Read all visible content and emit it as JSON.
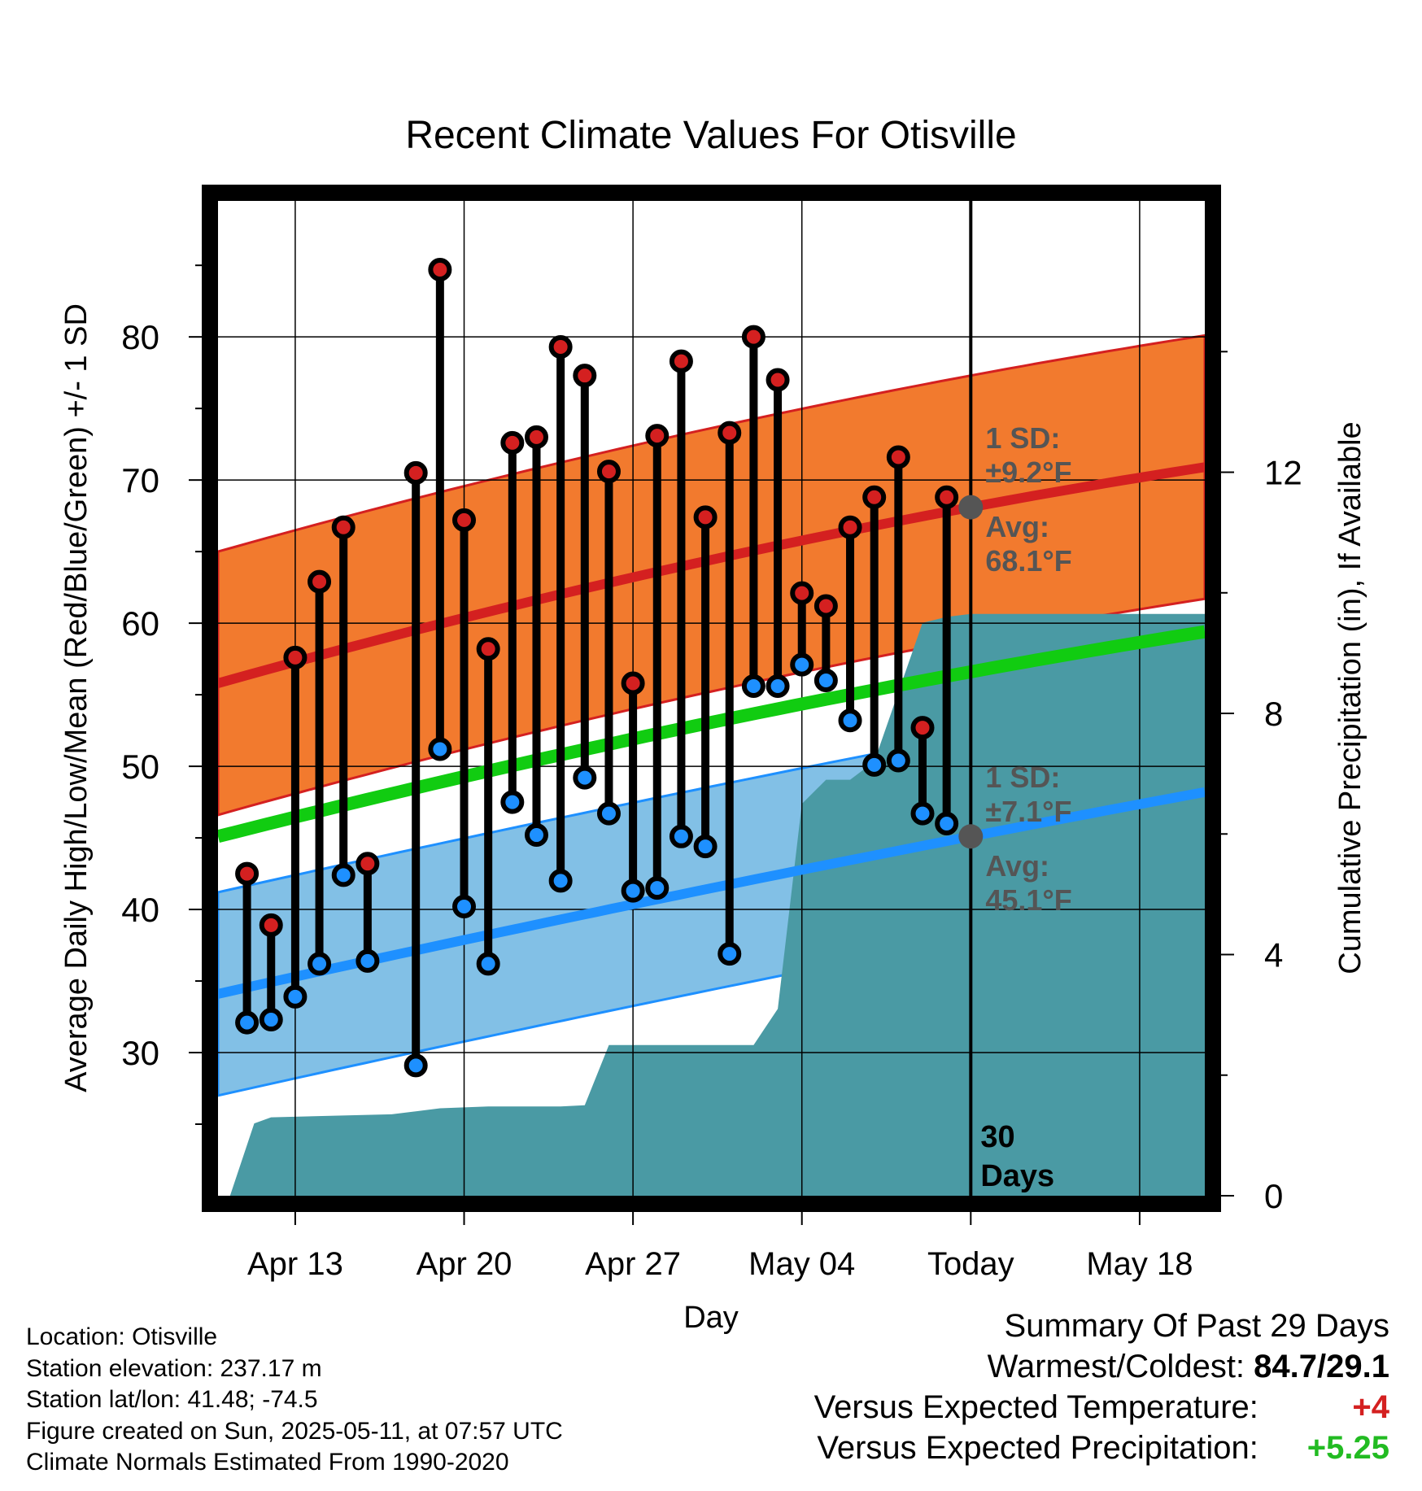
{
  "chart_data": {
    "type": "line",
    "title": "Recent Climate Values For Otisville",
    "xlabel": "Day",
    "ylabel": "Average Daily High/Low/Mean (Red/Blue/Green) +/- 1 SD",
    "y2label": "Cumulative Precipitation (in), If Available",
    "ylim": [
      20,
      89.5
    ],
    "y2lim": [
      0,
      16.5
    ],
    "x_tick_labels": [
      "Apr 13",
      "Apr 20",
      "Apr 27",
      "May 04",
      "Today",
      "May 18"
    ],
    "x_tick_days": [
      13,
      20,
      27,
      34,
      41,
      48
    ],
    "x_range_days": [
      9.8,
      50.7
    ],
    "y_ticks": [
      30,
      40,
      50,
      60,
      70,
      80
    ],
    "y2_ticks": [
      0,
      4,
      8,
      12
    ],
    "today_marker": {
      "day": 41,
      "label": "30 Days"
    },
    "normals": {
      "high_avg": {
        "days": [
          9.8,
          41,
          50.7
        ],
        "values": [
          55.8,
          68.1,
          70.9
        ]
      },
      "low_avg": {
        "days": [
          9.8,
          41,
          50.7
        ],
        "values": [
          34.1,
          45.1,
          48.2
        ]
      },
      "mean_avg": {
        "days": [
          9.8,
          41,
          50.7
        ],
        "values": [
          45.1,
          56.6,
          59.4
        ]
      },
      "high_sd": 9.2,
      "low_sd": 7.1
    },
    "annotations": {
      "high_sd_label": "1 SD:",
      "high_sd_value": "±9.2°F",
      "high_avg_label": "Avg:",
      "high_avg_value": "68.1°F",
      "low_sd_label": "1 SD:",
      "low_sd_value": "±7.1°F",
      "low_avg_label": "Avg:",
      "low_avg_value": "45.1°F"
    },
    "series": [
      {
        "name": "High",
        "color": "#d42020",
        "days": [
          11,
          12,
          13,
          14,
          15,
          16,
          18,
          19,
          20,
          21,
          22,
          23,
          24,
          25,
          26,
          27,
          28,
          29,
          30,
          31,
          32,
          33,
          34,
          35,
          36,
          37,
          38,
          39,
          40
        ],
        "values": [
          42.5,
          38.9,
          57.6,
          62.9,
          66.7,
          43.2,
          70.5,
          84.7,
          67.2,
          58.2,
          72.6,
          73.0,
          79.3,
          77.3,
          70.6,
          55.8,
          73.1,
          78.3,
          67.4,
          73.3,
          80.0,
          77.0,
          62.1,
          61.2,
          66.7,
          68.8,
          71.6,
          52.7,
          68.8
        ]
      },
      {
        "name": "Low",
        "color": "#1e90ff",
        "days": [
          11,
          12,
          13,
          14,
          15,
          16,
          18,
          19,
          20,
          21,
          22,
          23,
          24,
          25,
          26,
          27,
          28,
          29,
          30,
          31,
          32,
          33,
          34,
          35,
          36,
          37,
          38,
          39,
          40
        ],
        "values": [
          32.1,
          32.3,
          33.9,
          36.2,
          42.4,
          36.4,
          29.1,
          51.2,
          40.2,
          36.2,
          47.5,
          45.2,
          42.0,
          49.2,
          46.7,
          41.3,
          41.5,
          45.1,
          44.4,
          36.9,
          55.6,
          55.6,
          57.1,
          56.0,
          53.2,
          50.1,
          50.4,
          46.7,
          46.0
        ]
      },
      {
        "name": "Cumulative Precipitation",
        "color": "#4a9aa4",
        "days": [
          10.3,
          11.3,
          12,
          17,
          18,
          19,
          21,
          22,
          24,
          25,
          26,
          27,
          28,
          29,
          30,
          31,
          32,
          33,
          34,
          35,
          36,
          37,
          38,
          39,
          40,
          41,
          50.7
        ],
        "values": [
          0,
          1.2,
          1.3,
          1.35,
          1.4,
          1.45,
          1.48,
          1.48,
          1.48,
          1.5,
          2.5,
          2.5,
          2.5,
          2.5,
          2.5,
          2.5,
          2.5,
          3.1,
          6.5,
          6.9,
          6.9,
          7.2,
          8.35,
          9.5,
          9.6,
          9.65,
          9.65
        ]
      }
    ]
  },
  "footer": {
    "location": "Location: Otisville",
    "elevation": "Station elevation: 237.17 m",
    "latlon": "Station lat/lon: 41.48; -74.5",
    "created": "Figure created on Sun, 2025-05-11, at 07:57 UTC",
    "normals": "Climate Normals Estimated From 1990-2020"
  },
  "summary": {
    "title": "Summary Of Past 29 Days",
    "warmest_coldest_label": "Warmest/Coldest:",
    "warmest_coldest_value": "84.7/29.1",
    "temp_label": "Versus Expected Temperature:",
    "temp_value": "+4",
    "temp_color": "#d42020",
    "precip_label": "Versus Expected Precipitation:",
    "precip_value": "+5.25",
    "precip_color": "#22bb22"
  },
  "colors": {
    "high_band": "#f27a2e",
    "high_line": "#d42020",
    "low_band": "#82c0e6",
    "low_line": "#1e90ff",
    "mean_line": "#11cc11",
    "precip_fill": "#4a9aa4",
    "annotation": "#555555"
  }
}
